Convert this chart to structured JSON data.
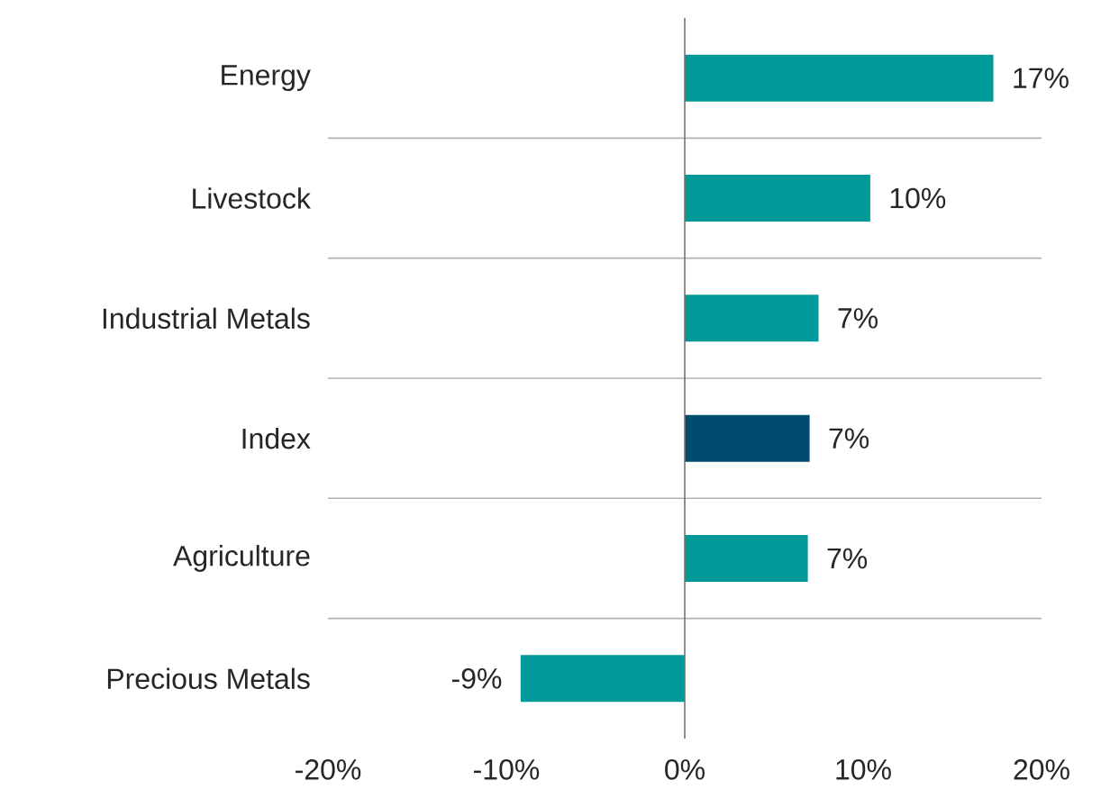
{
  "chart_data": {
    "type": "bar",
    "orientation": "horizontal",
    "categories": [
      "Energy",
      "Livestock",
      "Industrial Metals",
      "Index",
      "Agriculture",
      "Precious Metals"
    ],
    "values": [
      17.3,
      10.4,
      7.5,
      7.0,
      6.9,
      -9.2
    ],
    "value_labels": [
      "17%",
      "10%",
      "7%",
      "7%",
      "7%",
      "-9%"
    ],
    "colors": [
      "#009999",
      "#009999",
      "#009999",
      "#004b6e",
      "#009999",
      "#009999"
    ],
    "xlim": [
      -20,
      20
    ],
    "xticks": [
      {
        "value": -20,
        "label": "-20%"
      },
      {
        "value": -10,
        "label": "-10%"
      },
      {
        "value": 0,
        "label": "0%"
      },
      {
        "value": 10,
        "label": "10%"
      },
      {
        "value": 20,
        "label": "20%"
      }
    ],
    "grid": "y"
  }
}
